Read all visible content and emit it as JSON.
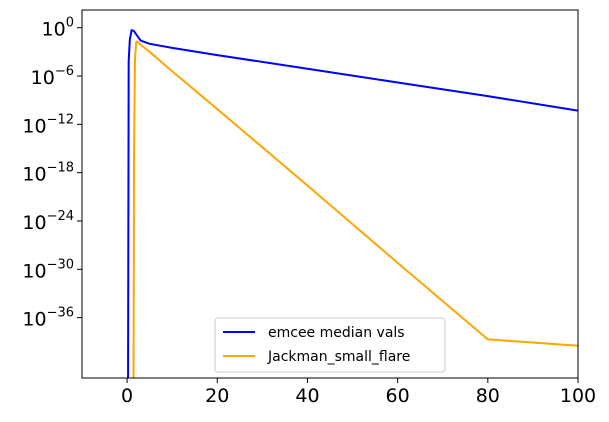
{
  "chart_data": {
    "type": "line",
    "title": "",
    "xlabel": "",
    "ylabel": "",
    "xlim": [
      -10,
      100
    ],
    "ylim_log10": [
      -43.5,
      2.2
    ],
    "yscale": "log",
    "grid": false,
    "legend_position": "bottom-center",
    "x_ticks": [
      0,
      20,
      40,
      60,
      80,
      100
    ],
    "x_tick_labels": [
      "0",
      "20",
      "40",
      "60",
      "80",
      "100"
    ],
    "y_tick_exponents": [
      0,
      -6,
      -12,
      -18,
      -24,
      -30,
      -36
    ],
    "y_tick_base": "10",
    "y_tick_labels": [
      {
        "base": "10",
        "exp": "0"
      },
      {
        "base": "10",
        "exp": "−6"
      },
      {
        "base": "10",
        "exp": "−12"
      },
      {
        "base": "10",
        "exp": "−18"
      },
      {
        "base": "10",
        "exp": "−24"
      },
      {
        "base": "10",
        "exp": "−30"
      },
      {
        "base": "10",
        "exp": "−36"
      }
    ],
    "series": [
      {
        "name": "emcee median vals",
        "color": "#0000ff",
        "x": [
          0.2,
          0.35,
          0.6,
          1.0,
          1.5,
          2.0,
          3.0,
          5.0,
          10,
          20,
          40,
          60,
          80,
          100
        ],
        "log10_y": [
          -60,
          -4.2,
          -1.5,
          -0.3,
          -0.4,
          -0.8,
          -1.6,
          -2.0,
          -2.5,
          -3.4,
          -5.1,
          -6.8,
          -8.5,
          -10.3
        ]
      },
      {
        "name": "Jackman_small_flare",
        "color": "#ffa500",
        "x": [
          1.4,
          1.55,
          1.75,
          2.0,
          2.2,
          3.0,
          5.0,
          10,
          20,
          40,
          60,
          80,
          100
        ],
        "log10_y": [
          -60,
          -15.0,
          -4.0,
          -1.8,
          -1.7,
          -2.1,
          -3.0,
          -5.4,
          -10.1,
          -19.6,
          -29.2,
          -38.7,
          -39.5
        ]
      }
    ],
    "legend": {
      "entries": [
        "emcee median vals",
        "Jackman_small_flare"
      ]
    }
  }
}
